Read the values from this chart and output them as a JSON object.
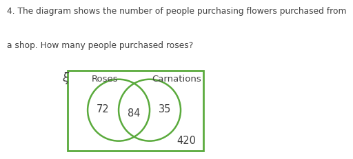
{
  "title_line1": "4. The diagram shows the number of people purchasing flowers purchased from",
  "title_line2": "a shop. How many people purchased roses?",
  "set_label_left": "Roses",
  "set_label_right": "Carnations",
  "universe_label": "ξ",
  "value_left": "72",
  "value_center": "84",
  "value_right": "35",
  "value_outside": "420",
  "circle_color": "#5aaa3c",
  "rect_color": "#5aaa3c",
  "bg_color": "#ffffff",
  "text_color": "#404040",
  "title_fontsize": 8.8,
  "label_fontsize": 9.5,
  "value_fontsize": 10.5,
  "xi_fontsize": 12
}
